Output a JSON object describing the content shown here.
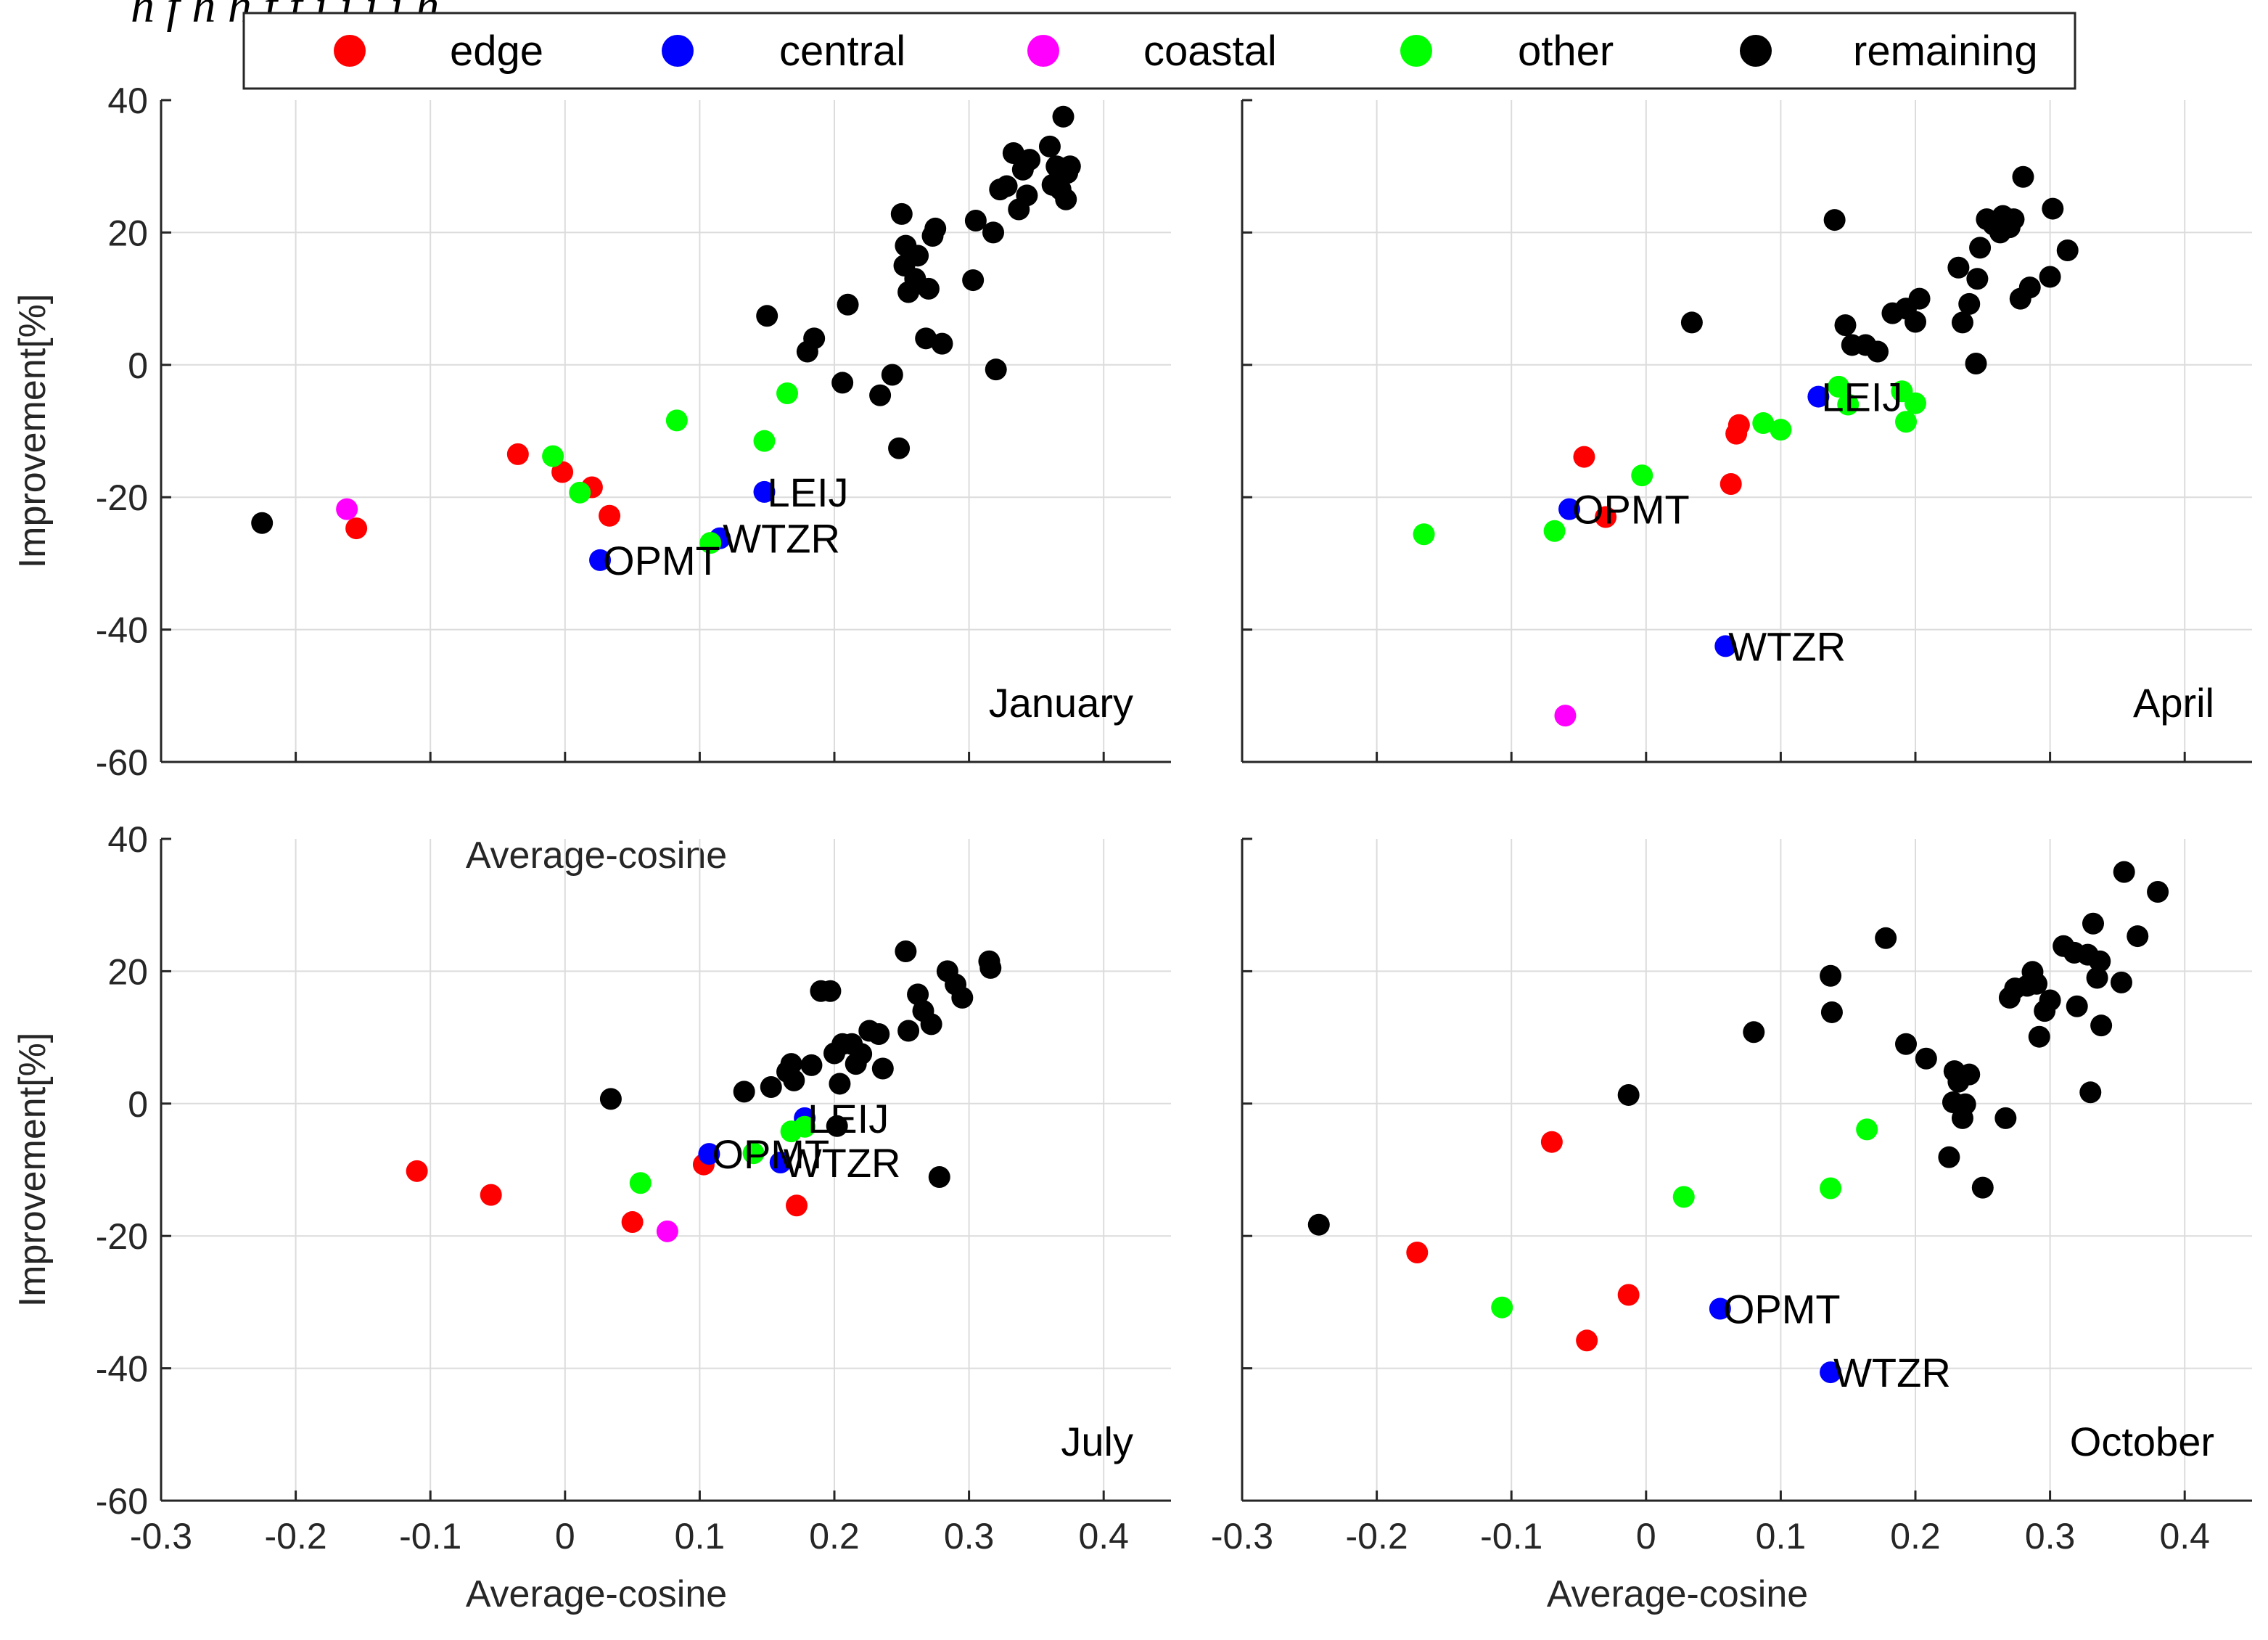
{
  "figure": {
    "caption_fragment": "h                    f         h                             h    f                  f   i    i         i           i          h"
  },
  "legend": {
    "items": [
      {
        "label": "edge",
        "color": "#ff0000",
        "key": "edge"
      },
      {
        "label": "central",
        "color": "#0000ff",
        "key": "central"
      },
      {
        "label": "coastal",
        "color": "#ff00ff",
        "key": "coastal"
      },
      {
        "label": "other",
        "color": "#00ff00",
        "key": "other"
      },
      {
        "label": "remaining",
        "color": "#000000",
        "key": "remaining"
      }
    ]
  },
  "chart_data": [
    {
      "type": "scatter",
      "title": "January",
      "xlabel": "Average-cosine",
      "ylabel": "Improvement[%]",
      "xlim": [
        -0.3,
        0.45
      ],
      "ylim": [
        -60,
        40
      ],
      "xticks": [
        -0.3,
        -0.2,
        -0.1,
        0,
        0.1,
        0.2,
        0.3,
        0.4
      ],
      "yticks": [
        -60,
        -40,
        -20,
        0,
        20,
        40
      ],
      "grid": true,
      "series": [
        {
          "name": "edge",
          "color": "#ff0000",
          "points": [
            [
              -0.155,
              -24.7
            ],
            [
              -0.035,
              -13.5
            ],
            [
              -0.002,
              -16.2
            ],
            [
              0.02,
              -18.5
            ],
            [
              0.033,
              -22.8
            ]
          ]
        },
        {
          "name": "central",
          "color": "#0000ff",
          "points": [
            [
              0.026,
              -29.5
            ],
            [
              0.115,
              -26.2
            ],
            [
              0.148,
              -19.2
            ]
          ]
        },
        {
          "name": "coastal",
          "color": "#ff00ff",
          "points": [
            [
              -0.162,
              -21.8
            ]
          ]
        },
        {
          "name": "other",
          "color": "#00ff00",
          "points": [
            [
              -0.009,
              -13.8
            ],
            [
              0.011,
              -19.3
            ],
            [
              0.083,
              -8.4
            ],
            [
              0.108,
              -26.9
            ],
            [
              0.148,
              -11.5
            ],
            [
              0.165,
              -4.3
            ]
          ]
        },
        {
          "name": "remaining",
          "color": "#000000",
          "points": [
            [
              -0.225,
              -23.9
            ],
            [
              0.15,
              7.4
            ],
            [
              0.18,
              2.0
            ],
            [
              0.185,
              4.0
            ],
            [
              0.206,
              -2.7
            ],
            [
              0.21,
              9.1
            ],
            [
              0.234,
              -4.6
            ],
            [
              0.243,
              -1.5
            ],
            [
              0.248,
              -12.6
            ],
            [
              0.25,
              22.8
            ],
            [
              0.252,
              15.0
            ],
            [
              0.253,
              18.0
            ],
            [
              0.255,
              11.0
            ],
            [
              0.26,
              13.0
            ],
            [
              0.262,
              16.5
            ],
            [
              0.268,
              4.0
            ],
            [
              0.27,
              11.5
            ],
            [
              0.273,
              19.5
            ],
            [
              0.275,
              20.6
            ],
            [
              0.28,
              3.2
            ],
            [
              0.303,
              12.8
            ],
            [
              0.305,
              21.8
            ],
            [
              0.318,
              20.0
            ],
            [
              0.32,
              -0.7
            ],
            [
              0.323,
              26.5
            ],
            [
              0.328,
              27.0
            ],
            [
              0.333,
              32.0
            ],
            [
              0.337,
              23.5
            ],
            [
              0.34,
              29.5
            ],
            [
              0.343,
              25.6
            ],
            [
              0.345,
              31.0
            ],
            [
              0.36,
              33.0
            ],
            [
              0.362,
              27.2
            ],
            [
              0.365,
              30.0
            ],
            [
              0.368,
              26.5
            ],
            [
              0.37,
              37.5
            ],
            [
              0.372,
              25.0
            ],
            [
              0.373,
              29.0
            ],
            [
              0.375,
              30.0
            ]
          ]
        }
      ],
      "annotations": [
        {
          "text": "LEIJ",
          "x": 0.148,
          "y": -19.2
        },
        {
          "text": "WTZR",
          "x": 0.115,
          "y": -26.2
        },
        {
          "text": "OPMT",
          "x": 0.026,
          "y": -29.5
        }
      ]
    },
    {
      "type": "scatter",
      "title": "April",
      "xlabel": "",
      "ylabel": "",
      "xlim": [
        -0.3,
        0.45
      ],
      "ylim": [
        -60,
        40
      ],
      "xticks": [
        -0.3,
        -0.2,
        -0.1,
        0,
        0.1,
        0.2,
        0.3,
        0.4
      ],
      "yticks": [
        -60,
        -40,
        -20,
        0,
        20,
        40
      ],
      "grid": true,
      "series": [
        {
          "name": "edge",
          "color": "#ff0000",
          "points": [
            [
              -0.046,
              -13.9
            ],
            [
              -0.03,
              -23.0
            ],
            [
              0.063,
              -18.0
            ],
            [
              0.067,
              -10.4
            ],
            [
              0.069,
              -9.1
            ]
          ]
        },
        {
          "name": "central",
          "color": "#0000ff",
          "points": [
            [
              -0.057,
              -21.8
            ],
            [
              0.059,
              -42.5
            ],
            [
              0.128,
              -4.8
            ]
          ]
        },
        {
          "name": "coastal",
          "color": "#ff00ff",
          "points": [
            [
              -0.06,
              -53.0
            ]
          ]
        },
        {
          "name": "other",
          "color": "#00ff00",
          "points": [
            [
              -0.165,
              -25.6
            ],
            [
              -0.068,
              -25.1
            ],
            [
              -0.003,
              -16.7
            ],
            [
              0.087,
              -8.8
            ],
            [
              0.1,
              -9.8
            ],
            [
              0.143,
              -3.3
            ],
            [
              0.15,
              -6.0
            ],
            [
              0.19,
              -4.0
            ],
            [
              0.193,
              -8.6
            ],
            [
              0.2,
              -5.8
            ]
          ]
        },
        {
          "name": "remaining",
          "color": "#000000",
          "points": [
            [
              0.034,
              6.4
            ],
            [
              0.14,
              21.9
            ],
            [
              0.148,
              6.0
            ],
            [
              0.153,
              3.0
            ],
            [
              0.163,
              3.0
            ],
            [
              0.172,
              2.0
            ],
            [
              0.183,
              7.8
            ],
            [
              0.193,
              8.5
            ],
            [
              0.2,
              6.5
            ],
            [
              0.203,
              10.0
            ],
            [
              0.232,
              14.7
            ],
            [
              0.235,
              6.4
            ],
            [
              0.24,
              9.2
            ],
            [
              0.245,
              0.2
            ],
            [
              0.246,
              13.0
            ],
            [
              0.248,
              17.7
            ],
            [
              0.253,
              22.0
            ],
            [
              0.258,
              21.2
            ],
            [
              0.263,
              20.0
            ],
            [
              0.265,
              22.5
            ],
            [
              0.27,
              20.8
            ],
            [
              0.273,
              22.0
            ],
            [
              0.278,
              10.0
            ],
            [
              0.28,
              28.4
            ],
            [
              0.285,
              11.7
            ],
            [
              0.3,
              13.3
            ],
            [
              0.302,
              23.6
            ],
            [
              0.313,
              17.3
            ]
          ]
        }
      ],
      "annotations": [
        {
          "text": "LEIJ",
          "x": 0.128,
          "y": -4.8
        },
        {
          "text": "OPMT",
          "x": -0.057,
          "y": -21.8
        },
        {
          "text": "WTZR",
          "x": 0.059,
          "y": -42.5
        }
      ]
    },
    {
      "type": "scatter",
      "title": "July",
      "xlabel": "Average-cosine",
      "ylabel": "Improvement[%]",
      "xlim": [
        -0.3,
        0.45
      ],
      "ylim": [
        -60,
        40
      ],
      "xticks": [
        -0.3,
        -0.2,
        -0.1,
        0,
        0.1,
        0.2,
        0.3,
        0.4
      ],
      "yticks": [
        -60,
        -40,
        -20,
        0,
        20,
        40
      ],
      "grid": true,
      "series": [
        {
          "name": "edge",
          "color": "#ff0000",
          "points": [
            [
              -0.11,
              -10.2
            ],
            [
              -0.055,
              -13.8
            ],
            [
              0.05,
              -17.9
            ],
            [
              0.103,
              -9.2
            ],
            [
              0.172,
              -15.4
            ]
          ]
        },
        {
          "name": "central",
          "color": "#0000ff",
          "points": [
            [
              0.107,
              -7.6
            ],
            [
              0.16,
              -8.9
            ],
            [
              0.178,
              -2.2
            ]
          ]
        },
        {
          "name": "coastal",
          "color": "#ff00ff",
          "points": [
            [
              0.076,
              -19.3
            ]
          ]
        },
        {
          "name": "other",
          "color": "#00ff00",
          "points": [
            [
              0.056,
              -12.0
            ],
            [
              0.14,
              -7.5
            ],
            [
              0.168,
              -4.2
            ],
            [
              0.178,
              -3.5
            ]
          ]
        },
        {
          "name": "remaining",
          "color": "#000000",
          "points": [
            [
              0.034,
              0.7
            ],
            [
              0.133,
              1.8
            ],
            [
              0.153,
              2.5
            ],
            [
              0.165,
              4.8
            ],
            [
              0.168,
              6.0
            ],
            [
              0.17,
              3.5
            ],
            [
              0.183,
              5.8
            ],
            [
              0.19,
              17.0
            ],
            [
              0.197,
              17.0
            ],
            [
              0.2,
              7.6
            ],
            [
              0.202,
              -3.4
            ],
            [
              0.204,
              3.0
            ],
            [
              0.206,
              9.0
            ],
            [
              0.213,
              9.0
            ],
            [
              0.216,
              6.0
            ],
            [
              0.22,
              7.5
            ],
            [
              0.226,
              11.0
            ],
            [
              0.233,
              10.5
            ],
            [
              0.236,
              5.3
            ],
            [
              0.253,
              23.0
            ],
            [
              0.255,
              11.0
            ],
            [
              0.262,
              16.5
            ],
            [
              0.266,
              14.0
            ],
            [
              0.272,
              12.0
            ],
            [
              0.278,
              -11.1
            ],
            [
              0.284,
              20.0
            ],
            [
              0.29,
              18.0
            ],
            [
              0.295,
              16.0
            ],
            [
              0.315,
              21.5
            ],
            [
              0.316,
              20.5
            ]
          ]
        }
      ],
      "annotations": [
        {
          "text": "LEIJ",
          "x": 0.178,
          "y": -2.2
        },
        {
          "text": "OPMT",
          "x": 0.107,
          "y": -7.6
        },
        {
          "text": "WTZR",
          "x": 0.16,
          "y": -8.9
        }
      ]
    },
    {
      "type": "scatter",
      "title": "October",
      "xlabel": "Average-cosine",
      "ylabel": "",
      "xlim": [
        -0.3,
        0.45
      ],
      "ylim": [
        -60,
        40
      ],
      "xticks": [
        -0.3,
        -0.2,
        -0.1,
        0,
        0.1,
        0.2,
        0.3,
        0.4
      ],
      "yticks": [
        -60,
        -40,
        -20,
        0,
        20,
        40
      ],
      "grid": true,
      "series": [
        {
          "name": "edge",
          "color": "#ff0000",
          "points": [
            [
              -0.17,
              -22.5
            ],
            [
              -0.07,
              -5.8
            ],
            [
              -0.044,
              -35.8
            ],
            [
              -0.013,
              -28.9
            ]
          ]
        },
        {
          "name": "central",
          "color": "#0000ff",
          "points": [
            [
              0.055,
              -31.0
            ],
            [
              0.137,
              -40.6
            ]
          ]
        },
        {
          "name": "coastal",
          "color": "#ff00ff",
          "points": []
        },
        {
          "name": "other",
          "color": "#00ff00",
          "points": [
            [
              -0.107,
              -30.8
            ],
            [
              0.028,
              -14.1
            ],
            [
              0.137,
              -12.8
            ],
            [
              0.164,
              -3.9
            ]
          ]
        },
        {
          "name": "remaining",
          "color": "#000000",
          "points": [
            [
              -0.243,
              -18.3
            ],
            [
              -0.013,
              1.3
            ],
            [
              0.08,
              10.8
            ],
            [
              0.137,
              19.3
            ],
            [
              0.138,
              13.8
            ],
            [
              0.178,
              25.0
            ],
            [
              0.193,
              9.0
            ],
            [
              0.208,
              6.8
            ],
            [
              0.225,
              -8.1
            ],
            [
              0.228,
              0.2
            ],
            [
              0.229,
              4.9
            ],
            [
              0.232,
              3.3
            ],
            [
              0.235,
              -2.2
            ],
            [
              0.237,
              -0.1
            ],
            [
              0.24,
              4.4
            ],
            [
              0.25,
              -12.7
            ],
            [
              0.267,
              -2.2
            ],
            [
              0.27,
              16.0
            ],
            [
              0.274,
              17.4
            ],
            [
              0.283,
              17.8
            ],
            [
              0.287,
              19.9
            ],
            [
              0.29,
              18.1
            ],
            [
              0.292,
              10.1
            ],
            [
              0.296,
              14.0
            ],
            [
              0.3,
              15.6
            ],
            [
              0.31,
              23.8
            ],
            [
              0.318,
              22.8
            ],
            [
              0.32,
              14.7
            ],
            [
              0.328,
              22.5
            ],
            [
              0.33,
              1.7
            ],
            [
              0.332,
              27.2
            ],
            [
              0.335,
              19.0
            ],
            [
              0.337,
              21.5
            ],
            [
              0.338,
              11.8
            ],
            [
              0.353,
              18.3
            ],
            [
              0.355,
              35.0
            ],
            [
              0.365,
              25.3
            ],
            [
              0.38,
              32.0
            ]
          ]
        }
      ],
      "annotations": [
        {
          "text": "OPMT",
          "x": 0.055,
          "y": -31.0
        },
        {
          "text": "WTZR",
          "x": 0.137,
          "y": -40.6
        }
      ]
    }
  ]
}
